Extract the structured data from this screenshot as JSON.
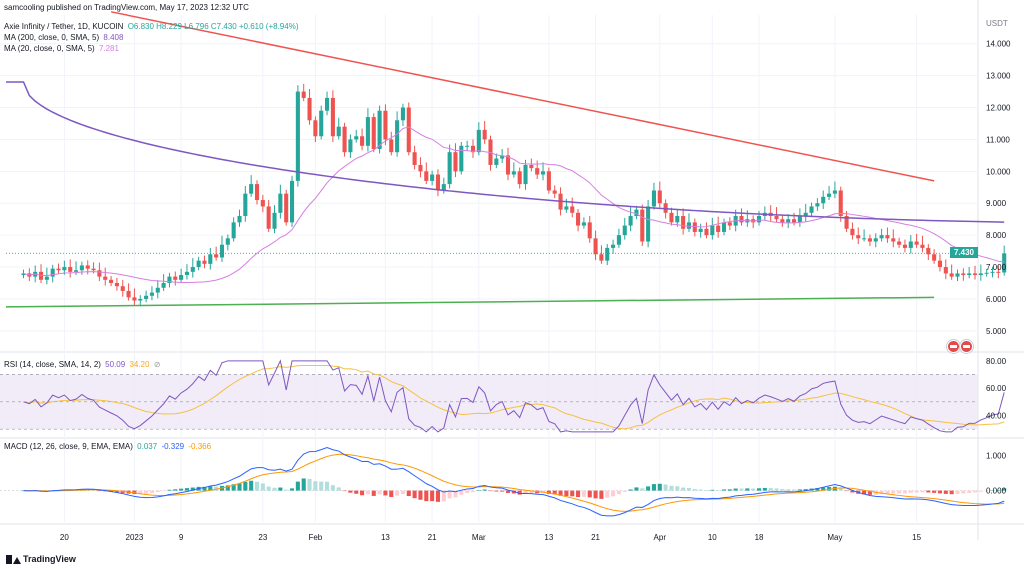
{
  "publisher": "samcooling published on TradingView.com, May 17, 2023 12:32 UTC",
  "brand": "TradingView",
  "colors": {
    "up": "#26a69a",
    "down": "#ef5350",
    "ma200": "#7e57c2",
    "ma20": "#d67fe0",
    "resistance": "#ef5350",
    "support": "#4caf50",
    "rsi": "#7e57c2",
    "rsi_ma": "#f5c142",
    "macd": "#2962ff",
    "signal": "#ff9800"
  },
  "header": {
    "symbol": "Axie Infinity / Tether, 1D, KUCOIN",
    "ohlc": "O6.830 H8.229 L6.796 C7.430 +0.610 (+8.94%)",
    "ma200_label": "MA (200, close, 0, SMA, 5)",
    "ma200_value": "8.408",
    "ma20_label": "MA (20, close, 0, SMA, 5)",
    "ma20_value": "7.281"
  },
  "rsi_header": {
    "label": "RSI (14, close, SMA, 14, 2)",
    "v1": "50.09",
    "v2": "34.20"
  },
  "macd_header": {
    "label": "MACD (12, 26, close, 9, EMA, EMA)",
    "v1": "0.037",
    "v2": "-0.329",
    "v3": "-0.366"
  },
  "last_price": "7.430",
  "chart_data": [
    {
      "type": "candlestick",
      "currency": "USDT",
      "y_ticks": [
        "14.000",
        "13.000",
        "12.000",
        "11.000",
        "10.000",
        "9.000",
        "8.000",
        "7.000",
        "6.000",
        "5.000"
      ],
      "ylim": [
        4.4,
        14.9
      ],
      "x_ticks": [
        {
          "label": "20",
          "date": "2022-12-20"
        },
        {
          "label": "2023",
          "date": "2023-01-01"
        },
        {
          "label": "9",
          "date": "2023-01-09"
        },
        {
          "label": "23",
          "date": "2023-01-23"
        },
        {
          "label": "Feb",
          "date": "2023-02-01"
        },
        {
          "label": "13",
          "date": "2023-02-13"
        },
        {
          "label": "21",
          "date": "2023-02-21"
        },
        {
          "label": "Mar",
          "date": "2023-03-01"
        },
        {
          "label": "13",
          "date": "2023-03-13"
        },
        {
          "label": "21",
          "date": "2023-03-21"
        },
        {
          "label": "Apr",
          "date": "2023-04-01"
        },
        {
          "label": "10",
          "date": "2023-04-10"
        },
        {
          "label": "18",
          "date": "2023-04-18"
        },
        {
          "label": "May",
          "date": "2023-05-01"
        },
        {
          "label": "15",
          "date": "2023-05-15"
        }
      ],
      "x_range": [
        "2022-12-10",
        "2023-05-25"
      ],
      "start_date": "2022-12-13",
      "close": [
        6.8,
        6.7,
        6.85,
        6.6,
        6.7,
        6.95,
        6.9,
        7.0,
        6.85,
        6.9,
        7.05,
        6.95,
        6.9,
        6.7,
        6.6,
        6.5,
        6.4,
        6.25,
        6.05,
        5.95,
        6.0,
        6.1,
        6.2,
        6.35,
        6.5,
        6.7,
        6.6,
        6.75,
        6.85,
        7.0,
        7.2,
        7.1,
        7.4,
        7.3,
        7.7,
        7.9,
        8.4,
        8.6,
        9.3,
        9.6,
        9.1,
        8.9,
        8.2,
        8.7,
        9.3,
        8.4,
        9.7,
        12.5,
        12.3,
        11.6,
        11.1,
        11.9,
        12.3,
        11.1,
        11.4,
        10.6,
        11.0,
        11.1,
        10.8,
        11.7,
        10.7,
        11.9,
        11.0,
        10.6,
        11.6,
        12.0,
        10.6,
        10.2,
        10.0,
        9.7,
        9.9,
        9.4,
        9.6,
        10.6,
        10.0,
        10.8,
        10.8,
        10.6,
        11.3,
        11.0,
        10.2,
        10.4,
        10.5,
        9.9,
        10.0,
        9.6,
        10.2,
        10.1,
        9.9,
        10.0,
        9.4,
        9.3,
        8.8,
        8.9,
        8.7,
        8.3,
        8.4,
        7.9,
        7.4,
        7.2,
        7.6,
        7.7,
        8.0,
        8.3,
        8.6,
        8.8,
        7.8,
        8.9,
        9.4,
        9.0,
        8.7,
        8.4,
        8.6,
        8.2,
        8.4,
        8.1,
        8.2,
        8.0,
        8.3,
        8.1,
        8.4,
        8.3,
        8.6,
        8.4,
        8.5,
        8.4,
        8.6,
        8.7,
        8.6,
        8.5,
        8.4,
        8.5,
        8.4,
        8.6,
        8.7,
        8.9,
        9.0,
        9.2,
        9.3,
        9.4,
        8.6,
        8.2,
        8.0,
        7.9,
        7.9,
        7.8,
        7.9,
        8.0,
        7.9,
        7.8,
        7.7,
        7.6,
        7.8,
        7.7,
        7.6,
        7.4,
        7.2,
        7.0,
        6.8,
        6.7,
        6.8,
        6.75,
        6.8,
        6.75,
        6.8,
        6.82,
        6.85,
        6.83,
        7.43
      ],
      "support_line": [
        {
          "date": "2022-12-10",
          "value": 5.75
        },
        {
          "date": "2023-05-18",
          "value": 6.05
        }
      ],
      "resistance_line": [
        {
          "date": "2022-12-28",
          "value": 15.0
        },
        {
          "date": "2023-05-18",
          "value": 9.7
        }
      ],
      "ma200_end": 8.408,
      "ma20_end": 7.281
    },
    {
      "type": "line",
      "name": "RSI",
      "y_ticks": [
        "80.00",
        "60.00",
        "40.00"
      ],
      "band": [
        30,
        70
      ],
      "ylim": [
        25,
        85
      ]
    },
    {
      "type": "histogram+line",
      "name": "MACD",
      "y_ticks": [
        "1.000",
        "0.000"
      ],
      "ylim": [
        -0.9,
        1.45
      ]
    }
  ]
}
